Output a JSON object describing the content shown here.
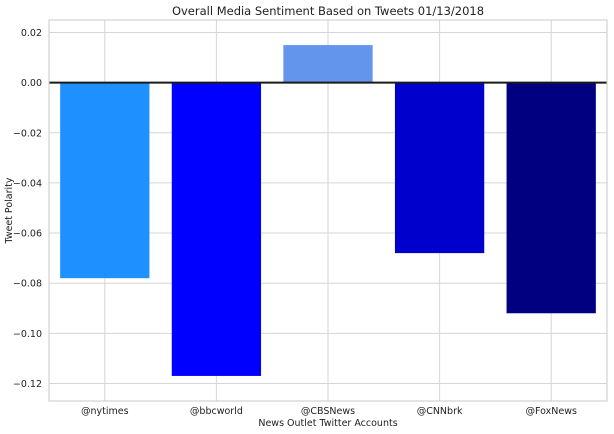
{
  "chart_data": {
    "type": "bar",
    "title": "Overall Media Sentiment Based on Tweets  01/13/2018",
    "xlabel": "News Outlet Twitter Accounts",
    "ylabel": "Tweet Polarity",
    "categories": [
      "@nytimes",
      "@bbcworld",
      "@CBSNews",
      "@CNNbrk",
      "@FoxNews"
    ],
    "values": [
      -0.078,
      -0.117,
      0.015,
      -0.068,
      -0.092
    ],
    "colors": [
      "#1e90ff",
      "#0000ff",
      "#6495ed",
      "#0000cd",
      "#000080"
    ],
    "ylim": [
      -0.127,
      0.025
    ],
    "yticks": [
      0.02,
      0.0,
      -0.02,
      -0.04,
      -0.06,
      -0.08,
      -0.1,
      -0.12
    ],
    "ytick_labels": [
      "0.02",
      "0.00",
      "−0.02",
      "−0.04",
      "−0.06",
      "−0.08",
      "−0.10",
      "−0.12"
    ],
    "grid": true,
    "zero_line": true,
    "zero_line_color": "#1a1a1a"
  }
}
